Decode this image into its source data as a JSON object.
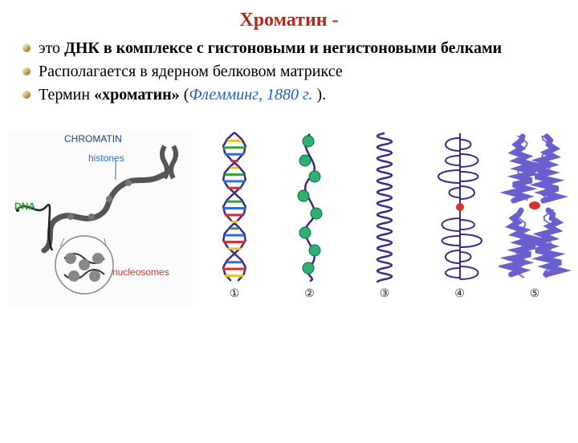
{
  "title": "Хроматин -",
  "title_color": "#b22a1c",
  "title_fontsize": 24,
  "body_fontsize": 20,
  "bullet_color": "#d8b14a",
  "lines": [
    {
      "html": "это <b>ДНК в комплексе с гистоновыми и негистоновыми белками</b>",
      "bold": false
    },
    {
      "html": "Располагается в ядерном белковом матриксе",
      "bold": false
    },
    {
      "html": "Термин <b>«хроматин»</b> (<i style='color:#1f5fbf'>Флемминг, 1880 г.</i> ).",
      "bold": false
    }
  ],
  "left_labels": {
    "chromatin": "CHROMATIN",
    "histones": "histones",
    "dna": "DNA",
    "nucleosomes": "nucleosomes"
  },
  "left_colors": {
    "chromatin": "#1f3f7f",
    "histones": "#1f6fcf",
    "dna": "#2a9f3a",
    "nucleosomes": "#c23a2a",
    "fiber": "#555555",
    "zoom_circle": "#888888"
  },
  "stages": {
    "count": 5,
    "labels": [
      "①",
      "②",
      "③",
      "④",
      "⑤"
    ],
    "helix_colors": [
      "#d92f2f",
      "#f0c420",
      "#3aa13a",
      "#2f6fd9"
    ],
    "bead_color": "#2fb070",
    "strand_color": "#3a2a8a",
    "centromere_color": "#d92f2f",
    "chrom_fill": "#6a5fcf",
    "height": 190,
    "width": 84
  }
}
